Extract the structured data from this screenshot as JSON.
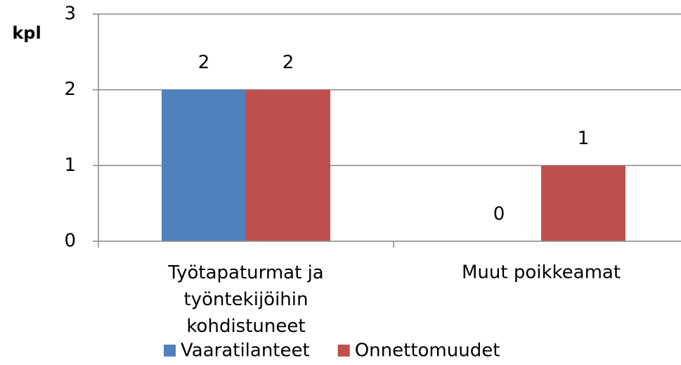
{
  "chart_data": {
    "type": "bar",
    "y_label": "kpl",
    "categories": [
      "Työtapaturmat ja työntekijöihin kohdistuneet",
      "Muut poikkeamat"
    ],
    "series": [
      {
        "name": "Vaaratilanteet",
        "color": "#4f81bd",
        "values": [
          2,
          0
        ]
      },
      {
        "name": "Onnettomuudet",
        "color": "#c0504d",
        "values": [
          2,
          1
        ]
      }
    ],
    "ylim": [
      0,
      3
    ],
    "yticks": [
      0,
      1,
      2,
      3
    ],
    "grid": true,
    "legend": "bottom"
  }
}
